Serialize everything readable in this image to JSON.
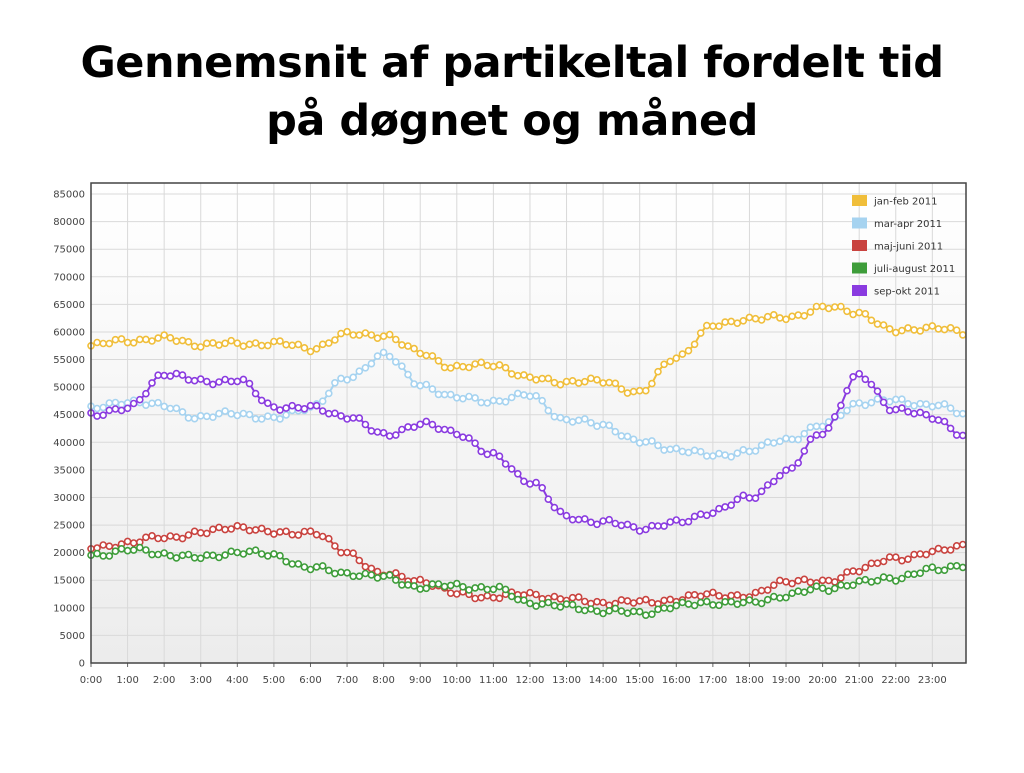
{
  "slide": {
    "title_line1": "Gennemsnit af partikeltal fordelt tid",
    "title_line2": "på døgnet og måned"
  },
  "chart_data": {
    "type": "line",
    "title": "",
    "xlabel": "",
    "ylabel": "",
    "ylim": [
      0,
      87000
    ],
    "xlim": [
      0,
      23.92
    ],
    "yticks": [
      0,
      5000,
      10000,
      15000,
      20000,
      25000,
      30000,
      35000,
      40000,
      45000,
      50000,
      55000,
      60000,
      65000,
      70000,
      75000,
      80000,
      85000
    ],
    "xtick_values": [
      0,
      1,
      2,
      3,
      4,
      5,
      6,
      7,
      8,
      9,
      10,
      11,
      12,
      13,
      14,
      15,
      16,
      17,
      18,
      19,
      20,
      21,
      22,
      23
    ],
    "xtick_labels": [
      "0:00",
      "1:00",
      "2:00",
      "3:00",
      "4:00",
      "5:00",
      "6:00",
      "7:00",
      "8:00",
      "9:00",
      "10:00",
      "11:00",
      "12:00",
      "13:00",
      "14:00",
      "15:00",
      "16:00",
      "17:00",
      "18:00",
      "19:00",
      "20:00",
      "21:00",
      "22:00",
      "23:00"
    ],
    "grid": true,
    "legend_position": "top-right",
    "points_per_hour": 6,
    "series": [
      {
        "name": "jan-feb 2011",
        "color": "#f0be3a",
        "hourly": [
          57500,
          58500,
          58800,
          57800,
          57800,
          58000,
          57000,
          59500,
          59500,
          56200,
          53500,
          54200,
          51500,
          51000,
          51000,
          49000,
          55500,
          61000,
          62500,
          62500,
          64500,
          63500,
          60000,
          61000,
          59500
        ]
      },
      {
        "name": "mar-apr 2011",
        "color": "#a6d3f0",
        "hourly": [
          46000,
          47500,
          46500,
          44500,
          45300,
          44200,
          46500,
          51500,
          56000,
          50500,
          48000,
          47500,
          48500,
          44000,
          43200,
          40000,
          38800,
          37500,
          38500,
          40500,
          43000,
          47200,
          47500,
          46800,
          45000
        ]
      },
      {
        "name": "maj-juni 2011",
        "color": "#c9433f",
        "hourly": [
          20800,
          21800,
          22800,
          23500,
          24800,
          23500,
          23800,
          20000,
          16000,
          15000,
          12500,
          12000,
          12500,
          11500,
          11000,
          11000,
          11500,
          12500,
          12000,
          15000,
          14500,
          17000,
          19000,
          20000,
          21500
        ]
      },
      {
        "name": "juli-august 2011",
        "color": "#3e9d3a",
        "hourly": [
          19500,
          20500,
          19800,
          19000,
          20200,
          19500,
          17200,
          16300,
          15500,
          13800,
          14000,
          13500,
          11000,
          10200,
          9500,
          9000,
          10300,
          11000,
          10800,
          12300,
          13500,
          14500,
          15500,
          16800,
          18000
        ]
      },
      {
        "name": "sep-okt 2011",
        "color": "#8a3be0",
        "hourly": [
          45200,
          46000,
          52500,
          51000,
          51300,
          46500,
          46200,
          44800,
          41300,
          43300,
          41800,
          37500,
          33000,
          26500,
          25500,
          24500,
          25300,
          27500,
          30000,
          34500,
          42000,
          52000,
          46000,
          44500,
          41000
        ]
      }
    ]
  }
}
